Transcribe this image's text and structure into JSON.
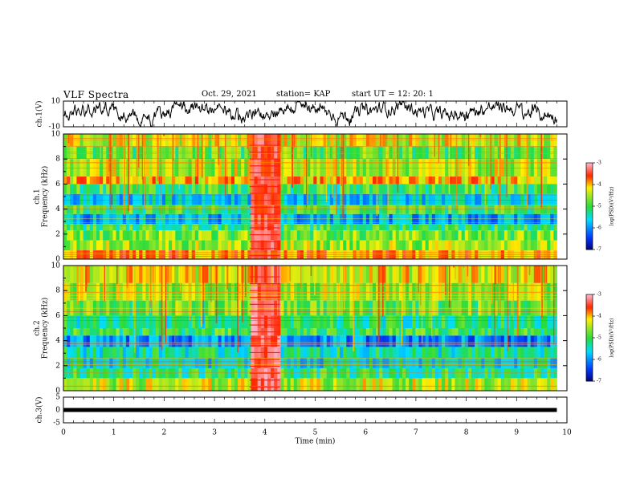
{
  "header": {
    "title": "VLF Spectra",
    "date": "Oct. 29, 2021",
    "station": "station= KAP",
    "start": "start  UT  =   12: 20: 1"
  },
  "chart_data": [
    {
      "type": "line",
      "panel": "ch1-waveform",
      "ylabel": "ch.1(V)",
      "ylim": [
        -10,
        10
      ],
      "yticks": [
        "10",
        "-10"
      ],
      "xlim": [
        0,
        10
      ],
      "series": [
        {
          "color": "#000000",
          "note_range_min": -9,
          "note_range_max": 9
        }
      ]
    },
    {
      "type": "heatmap",
      "panel": "ch1-spectrogram",
      "ylabel": "ch.1\nFrequency (kHz)",
      "ylabel_lines": [
        "ch.1",
        "Frequency (kHz)"
      ],
      "ylim": [
        0,
        10
      ],
      "yticks": [
        "0",
        "2",
        "4",
        "6",
        "8",
        "10"
      ],
      "xlim": [
        0,
        9.8
      ],
      "colorbar": {
        "label": "log(PSD)(V²/Hz)",
        "ticks": [
          "-3",
          "-4",
          "-5",
          "-6",
          "-7"
        ],
        "range": [
          -7,
          -3
        ]
      },
      "bands": [
        {
          "f": [
            9.0,
            10.0
          ],
          "level": -4.3
        },
        {
          "f": [
            8.0,
            9.0
          ],
          "level": -4.8
        },
        {
          "f": [
            6.6,
            8.0
          ],
          "level": -4.4
        },
        {
          "f": [
            6.0,
            6.6
          ],
          "level": -4.0
        },
        {
          "f": [
            5.2,
            6.0
          ],
          "level": -5.0
        },
        {
          "f": [
            4.3,
            5.2
          ],
          "level": -5.6
        },
        {
          "f": [
            3.6,
            4.3
          ],
          "level": -5.0
        },
        {
          "f": [
            2.8,
            3.6
          ],
          "level": -5.8
        },
        {
          "f": [
            2.3,
            2.8
          ],
          "level": -5.0
        },
        {
          "f": [
            1.5,
            2.3
          ],
          "level": -4.7
        },
        {
          "f": [
            0.7,
            1.5
          ],
          "level": -4.5
        },
        {
          "f": [
            0.0,
            0.7
          ],
          "level": -3.8
        }
      ],
      "burst": {
        "t": [
          3.7,
          4.3
        ],
        "level": -3.4
      }
    },
    {
      "type": "heatmap",
      "panel": "ch2-spectrogram",
      "ylabel": "ch.2\nFrequency (kHz)",
      "ylabel_lines": [
        "ch.2",
        "Frequency (kHz)"
      ],
      "ylim": [
        0,
        10
      ],
      "yticks": [
        "0",
        "2",
        "4",
        "6",
        "8",
        "10"
      ],
      "xlim": [
        0,
        9.8
      ],
      "colorbar": {
        "label": "log(PSD)(V²/Hz)",
        "ticks": [
          "-3",
          "-4",
          "-5",
          "-6",
          "-7"
        ],
        "range": [
          -7,
          -3
        ]
      },
      "bands": [
        {
          "f": [
            8.6,
            10.0
          ],
          "level": -4.2
        },
        {
          "f": [
            7.2,
            8.6
          ],
          "level": -4.5
        },
        {
          "f": [
            6.0,
            7.2
          ],
          "level": -4.8
        },
        {
          "f": [
            5.0,
            6.0
          ],
          "level": -5.2
        },
        {
          "f": [
            4.4,
            5.0
          ],
          "level": -5.0
        },
        {
          "f": [
            3.5,
            4.4
          ],
          "level": -6.0
        },
        {
          "f": [
            2.6,
            3.5
          ],
          "level": -5.3
        },
        {
          "f": [
            1.8,
            2.6
          ],
          "level": -5.5
        },
        {
          "f": [
            1.0,
            1.8
          ],
          "level": -5.1
        },
        {
          "f": [
            0.0,
            1.0
          ],
          "level": -4.4
        }
      ],
      "burst": {
        "t": [
          3.7,
          4.3
        ],
        "level": -3.3
      }
    },
    {
      "type": "line",
      "panel": "ch3-waveform",
      "ylabel": "ch.3(V)",
      "ylim": [
        -5,
        5
      ],
      "yticks": [
        "5",
        "0",
        "-5"
      ],
      "xlim": [
        0,
        10
      ],
      "xlabel": "Time  (min)",
      "xticks": [
        "0",
        "1",
        "2",
        "3",
        "4",
        "5",
        "6",
        "7",
        "8",
        "9",
        "10"
      ],
      "series": [
        {
          "color": "#000000",
          "constant": 0
        }
      ]
    }
  ]
}
